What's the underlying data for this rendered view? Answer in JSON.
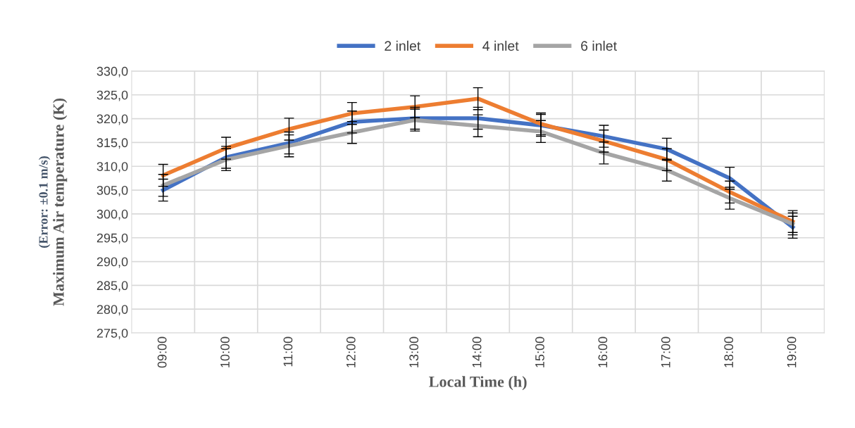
{
  "chart_data": {
    "type": "line",
    "categories": [
      "09:00",
      "10:00",
      "11:00",
      "12:00",
      "13:00",
      "14:00",
      "15:00",
      "16:00",
      "17:00",
      "18:00",
      "19:00"
    ],
    "series": [
      {
        "name": "2 inlet",
        "color": "#4472c4",
        "values": [
          305.0,
          311.9,
          314.9,
          319.3,
          320.1,
          320.1,
          318.6,
          316.3,
          313.6,
          307.5,
          297.2
        ],
        "errors": [
          2.3,
          2.3,
          2.3,
          2.3,
          2.3,
          2.3,
          2.3,
          2.3,
          2.3,
          2.3,
          2.3
        ]
      },
      {
        "name": "4 inlet",
        "color": "#ed7d31",
        "values": [
          308.1,
          313.8,
          317.8,
          321.1,
          322.5,
          324.2,
          318.9,
          315.3,
          311.4,
          304.6,
          298.4
        ],
        "errors": [
          2.3,
          2.3,
          2.3,
          2.3,
          2.3,
          2.3,
          2.3,
          2.3,
          2.3,
          2.3,
          2.3
        ]
      },
      {
        "name": "6 inlet",
        "color": "#a5a5a5",
        "values": [
          306.0,
          311.4,
          314.3,
          317.1,
          319.7,
          318.5,
          317.3,
          312.8,
          309.2,
          303.3,
          297.9
        ],
        "errors": [
          2.3,
          2.3,
          2.3,
          2.3,
          2.3,
          2.3,
          2.3,
          2.3,
          2.3,
          2.3,
          2.3
        ]
      }
    ],
    "xlabel": "Local Time (h)",
    "ylabel": "Maximum Air temperature (K)",
    "annotations": [
      "(Error: ±0.1 m/s)"
    ],
    "ylim": [
      275,
      330
    ],
    "yticks": [
      {
        "value": 275,
        "label": "275,0"
      },
      {
        "value": 280,
        "label": "280,0"
      },
      {
        "value": 285,
        "label": "285,0"
      },
      {
        "value": 290,
        "label": "290,0"
      },
      {
        "value": 295,
        "label": "295,0"
      },
      {
        "value": 300,
        "label": "300,0"
      },
      {
        "value": 305,
        "label": "305,0"
      },
      {
        "value": 310,
        "label": "310,0"
      },
      {
        "value": 315,
        "label": "315,0"
      },
      {
        "value": 320,
        "label": "320,0"
      },
      {
        "value": 325,
        "label": "325,0"
      },
      {
        "value": 330,
        "label": "330,0"
      }
    ],
    "grid": true,
    "legend": "top",
    "marker": "none",
    "line_style": "solid"
  }
}
